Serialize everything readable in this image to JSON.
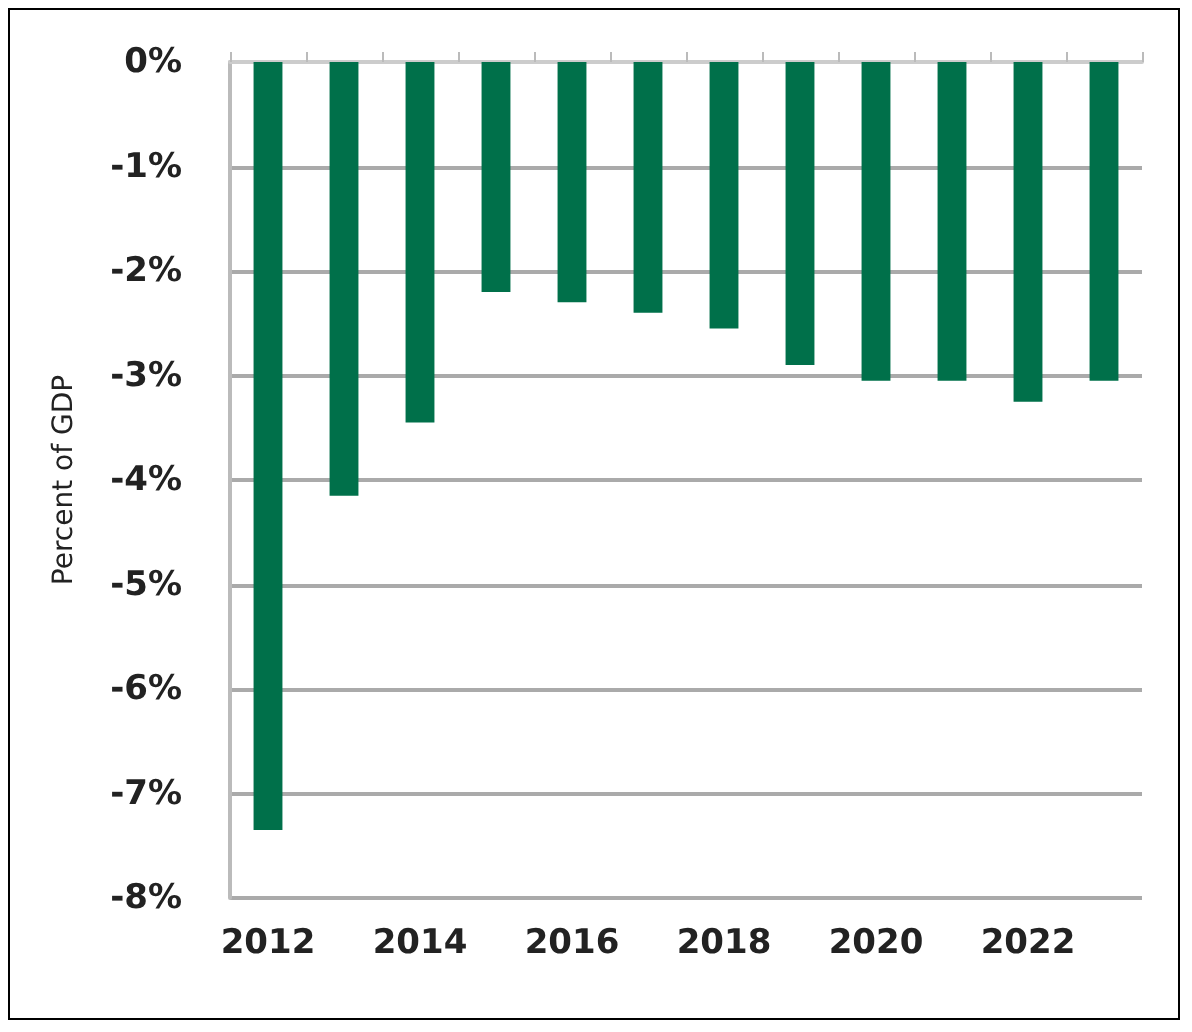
{
  "chart_data": {
    "type": "bar",
    "ylabel": "Percent of GDP",
    "categories": [
      "2012",
      null,
      "2014",
      null,
      "2016",
      null,
      "2018",
      null,
      "2020",
      null,
      "2022",
      null
    ],
    "values": [
      -7.35,
      -4.15,
      -3.45,
      -2.2,
      -2.3,
      -2.4,
      -2.55,
      -2.9,
      -3.05,
      -3.05,
      -3.25,
      -3.05
    ],
    "color": "#00704a",
    "ylim": [
      -8,
      0
    ],
    "yticks": [
      {
        "value": -8,
        "label": "-8%"
      },
      {
        "value": -7,
        "label": "-7%"
      },
      {
        "value": -6,
        "label": "-6%"
      },
      {
        "value": -5,
        "label": "-5%"
      },
      {
        "value": -4,
        "label": "-4%"
      },
      {
        "value": -3,
        "label": "-3%"
      },
      {
        "value": -2,
        "label": "-2%"
      },
      {
        "value": -1,
        "label": "-1%"
      },
      {
        "value": 0,
        "label": "0%"
      }
    ],
    "grid": "y"
  }
}
